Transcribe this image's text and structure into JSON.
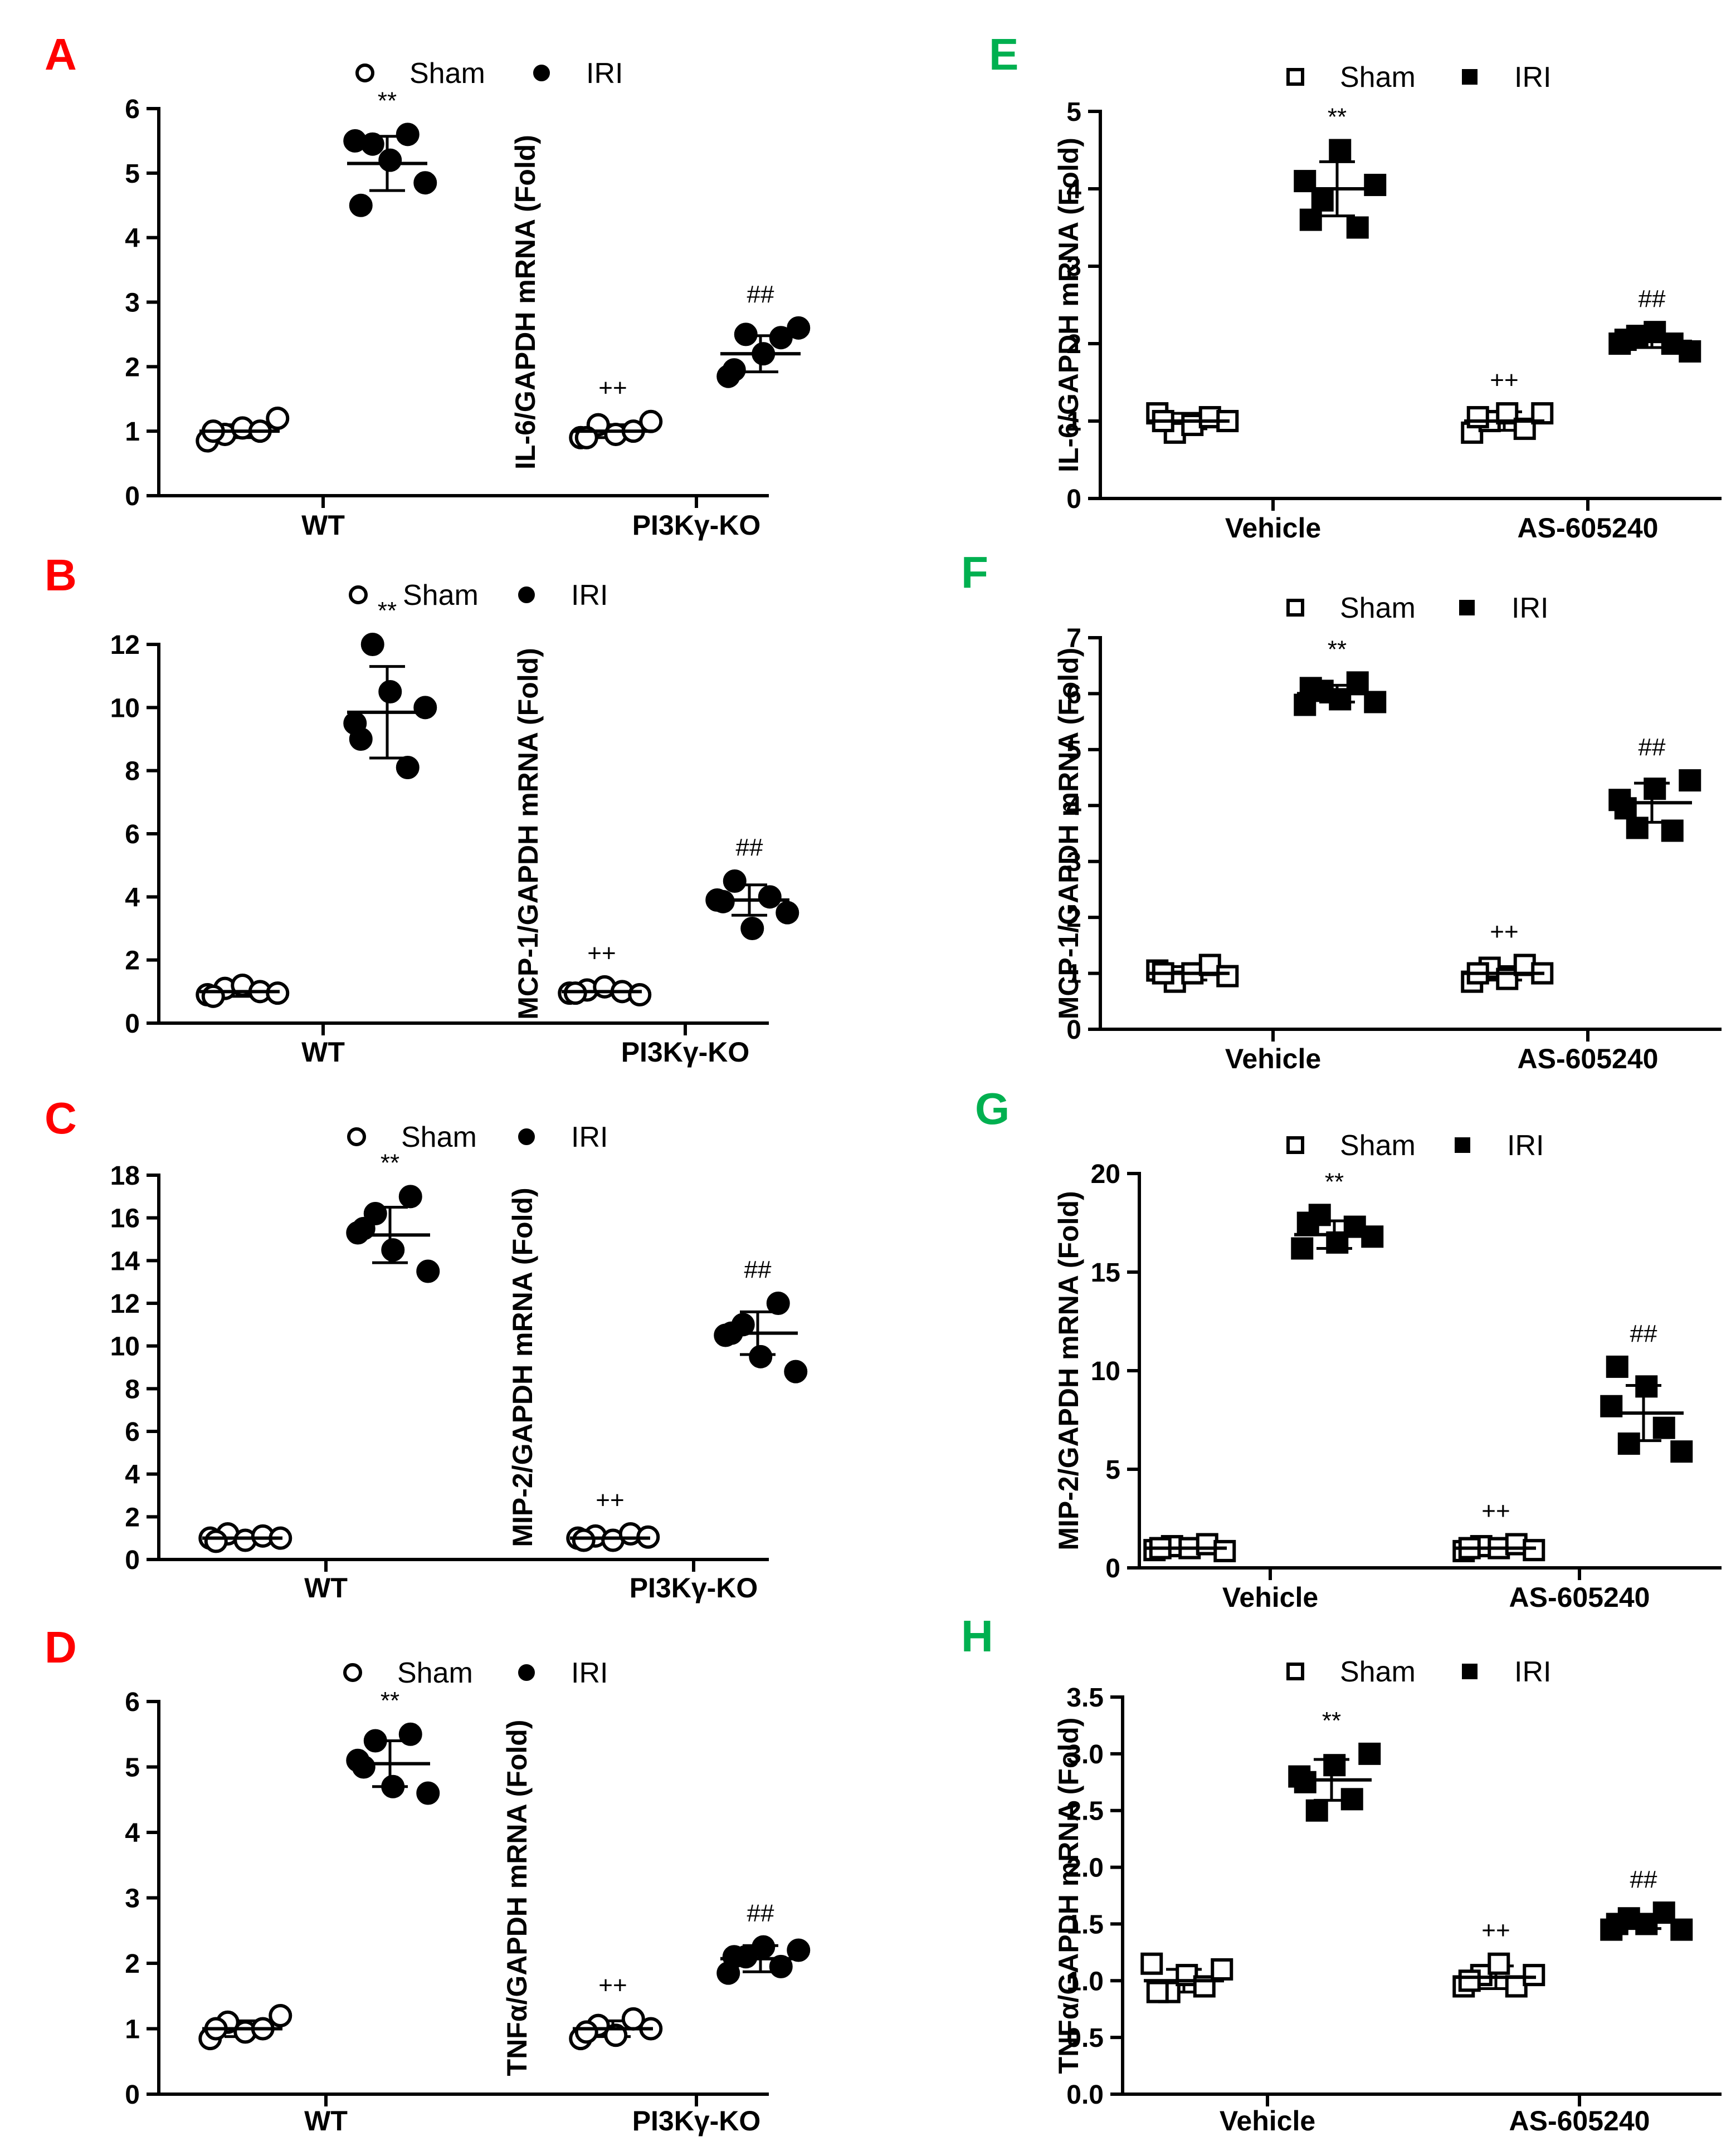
{
  "figure": {
    "panel_label_colors": {
      "left": "#ff0000",
      "right": "#00b050"
    }
  },
  "chart_data": [
    {
      "panel": "A",
      "type": "scatter",
      "marker": "circle",
      "ylabel": "IL-6/GAPDH mRNA (Fold)",
      "ylim": [
        0,
        6
      ],
      "yticks": [
        "0",
        "1",
        "2",
        "3",
        "4",
        "5",
        "6"
      ],
      "categories": [
        "WT",
        "PI3Kγ-KO"
      ],
      "legend": [
        {
          "name": "Sham",
          "fill": "open"
        },
        {
          "name": "IRI",
          "fill": "filled"
        }
      ],
      "groups": [
        {
          "category": 0,
          "series": "Sham",
          "values": [
            0.85,
            0.95,
            1.05,
            1.0,
            1.2,
            1.0
          ],
          "mean": 1.0,
          "sd": 0.1,
          "annotation": ""
        },
        {
          "category": 0,
          "series": "IRI",
          "values": [
            5.5,
            5.45,
            5.2,
            5.6,
            4.85,
            4.5
          ],
          "mean": 5.15,
          "sd": 0.42,
          "annotation": "**"
        },
        {
          "category": 1,
          "series": "Sham",
          "values": [
            0.9,
            1.1,
            0.95,
            1.0,
            1.15,
            0.9
          ],
          "mean": 1.0,
          "sd": 0.1,
          "annotation": "++"
        },
        {
          "category": 1,
          "series": "IRI",
          "values": [
            1.85,
            2.5,
            2.2,
            2.45,
            2.6,
            1.95
          ],
          "mean": 2.2,
          "sd": 0.28,
          "annotation": "##"
        }
      ]
    },
    {
      "panel": "B",
      "type": "scatter",
      "marker": "circle",
      "ylabel": "MCP-1/GAPDH mRNA (Fold)",
      "ylim": [
        0,
        12
      ],
      "yticks": [
        "0",
        "2",
        "4",
        "6",
        "8",
        "10",
        "12"
      ],
      "categories": [
        "WT",
        "PI3Kγ-KO"
      ],
      "legend": [
        {
          "name": "Sham",
          "fill": "open"
        },
        {
          "name": "IRI",
          "fill": "filled"
        }
      ],
      "groups": [
        {
          "category": 0,
          "series": "Sham",
          "values": [
            0.9,
            1.1,
            1.2,
            1.0,
            0.95,
            0.85
          ],
          "mean": 1.0,
          "sd": 0.15,
          "annotation": ""
        },
        {
          "category": 0,
          "series": "IRI",
          "values": [
            9.5,
            12.0,
            10.5,
            8.1,
            10.0,
            9.0
          ],
          "mean": 9.85,
          "sd": 1.45,
          "annotation": "**"
        },
        {
          "category": 1,
          "series": "Sham",
          "values": [
            0.95,
            1.05,
            1.15,
            1.0,
            0.9,
            0.95
          ],
          "mean": 1.0,
          "sd": 0.1,
          "annotation": "++"
        },
        {
          "category": 1,
          "series": "IRI",
          "values": [
            3.9,
            4.5,
            3.0,
            4.0,
            3.5,
            3.85
          ],
          "mean": 3.9,
          "sd": 0.48,
          "annotation": "##"
        }
      ]
    },
    {
      "panel": "C",
      "type": "scatter",
      "marker": "circle",
      "ylabel": "MIP-2/GAPDH mRNA (Fold)",
      "ylim": [
        0,
        18
      ],
      "yticks": [
        "0",
        "2",
        "4",
        "6",
        "8",
        "10",
        "12",
        "14",
        "16",
        "18"
      ],
      "categories": [
        "WT",
        "PI3Kγ-KO"
      ],
      "legend": [
        {
          "name": "Sham",
          "fill": "open"
        },
        {
          "name": "IRI",
          "fill": "filled"
        }
      ],
      "groups": [
        {
          "category": 0,
          "series": "Sham",
          "values": [
            1.0,
            1.2,
            0.9,
            1.1,
            1.0,
            0.85
          ],
          "mean": 1.0,
          "sd": 0.15,
          "annotation": ""
        },
        {
          "category": 0,
          "series": "IRI",
          "values": [
            15.3,
            16.2,
            14.5,
            17.0,
            13.5,
            15.5
          ],
          "mean": 15.2,
          "sd": 1.3,
          "annotation": "**"
        },
        {
          "category": 1,
          "series": "Sham",
          "values": [
            1.0,
            1.1,
            0.9,
            1.2,
            1.05,
            0.9
          ],
          "mean": 1.0,
          "sd": 0.12,
          "annotation": "++"
        },
        {
          "category": 1,
          "series": "IRI",
          "values": [
            10.5,
            11.0,
            9.5,
            12.0,
            8.8,
            10.6
          ],
          "mean": 10.6,
          "sd": 1.0,
          "annotation": "##"
        }
      ]
    },
    {
      "panel": "D",
      "type": "scatter",
      "marker": "circle",
      "ylabel": "TNFα/GAPDH mRNA (Fold)",
      "ylim": [
        0,
        6
      ],
      "yticks": [
        "0",
        "1",
        "2",
        "3",
        "4",
        "5",
        "6"
      ],
      "categories": [
        "WT",
        "PI3Kγ-KO"
      ],
      "legend": [
        {
          "name": "Sham",
          "fill": "open"
        },
        {
          "name": "IRI",
          "fill": "filled"
        }
      ],
      "groups": [
        {
          "category": 0,
          "series": "Sham",
          "values": [
            0.85,
            1.1,
            0.95,
            1.0,
            1.2,
            1.0
          ],
          "mean": 1.0,
          "sd": 0.12,
          "annotation": ""
        },
        {
          "category": 0,
          "series": "IRI",
          "values": [
            5.1,
            5.4,
            4.7,
            5.5,
            4.6,
            5.0
          ],
          "mean": 5.05,
          "sd": 0.35,
          "annotation": "**"
        },
        {
          "category": 1,
          "series": "Sham",
          "values": [
            0.85,
            1.05,
            0.9,
            1.15,
            1.0,
            0.95
          ],
          "mean": 1.0,
          "sd": 0.12,
          "annotation": "++"
        },
        {
          "category": 1,
          "series": "IRI",
          "values": [
            1.85,
            2.1,
            2.25,
            1.95,
            2.2,
            2.1
          ],
          "mean": 2.07,
          "sd": 0.2,
          "annotation": "##"
        }
      ]
    },
    {
      "panel": "E",
      "type": "scatter",
      "marker": "square",
      "ylabel": "IL-6/GAPDH mRNA (Fold)",
      "ylim": [
        0,
        5
      ],
      "yticks": [
        "0",
        "1",
        "2",
        "3",
        "4",
        "5"
      ],
      "categories": [
        "Vehicle",
        "AS-605240"
      ],
      "legend": [
        {
          "name": "Sham",
          "fill": "open"
        },
        {
          "name": "IRI",
          "fill": "filled"
        }
      ],
      "groups": [
        {
          "category": 0,
          "series": "Sham",
          "values": [
            1.1,
            0.85,
            0.95,
            1.05,
            1.0,
            1.0
          ],
          "mean": 1.0,
          "sd": 0.1,
          "annotation": ""
        },
        {
          "category": 0,
          "series": "IRI",
          "values": [
            4.1,
            3.85,
            4.5,
            3.5,
            4.05,
            3.6
          ],
          "mean": 4.0,
          "sd": 0.35,
          "annotation": "**"
        },
        {
          "category": 1,
          "series": "Sham",
          "values": [
            0.85,
            1.0,
            1.1,
            0.9,
            1.1,
            1.05
          ],
          "mean": 1.0,
          "sd": 0.12,
          "annotation": "++"
        },
        {
          "category": 1,
          "series": "IRI",
          "values": [
            2.0,
            2.1,
            2.15,
            2.0,
            1.9,
            2.05
          ],
          "mean": 2.03,
          "sd": 0.08,
          "annotation": "##"
        }
      ]
    },
    {
      "panel": "F",
      "type": "scatter",
      "marker": "square",
      "ylabel": "MCP-1/GAPDH mRNA (Fold)",
      "ylim": [
        0,
        7
      ],
      "yticks": [
        "0",
        "1",
        "2",
        "3",
        "4",
        "5",
        "6",
        "7"
      ],
      "categories": [
        "Vehicle",
        "AS-605240"
      ],
      "legend": [
        {
          "name": "Sham",
          "fill": "open"
        },
        {
          "name": "IRI",
          "fill": "filled"
        }
      ],
      "groups": [
        {
          "category": 0,
          "series": "Sham",
          "values": [
            1.05,
            0.85,
            1.0,
            1.15,
            0.95,
            1.0
          ],
          "mean": 1.0,
          "sd": 0.12,
          "annotation": ""
        },
        {
          "category": 0,
          "series": "IRI",
          "values": [
            5.8,
            6.05,
            5.9,
            6.2,
            5.85,
            6.1
          ],
          "mean": 6.0,
          "sd": 0.15,
          "annotation": "**"
        },
        {
          "category": 1,
          "series": "Sham",
          "values": [
            0.85,
            1.1,
            0.9,
            1.15,
            1.0,
            1.0
          ],
          "mean": 1.0,
          "sd": 0.12,
          "annotation": "++"
        },
        {
          "category": 1,
          "series": "IRI",
          "values": [
            4.1,
            3.6,
            4.3,
            3.55,
            4.45,
            3.95
          ],
          "mean": 4.05,
          "sd": 0.35,
          "annotation": "##"
        }
      ]
    },
    {
      "panel": "G",
      "type": "scatter",
      "marker": "square",
      "ylabel": "MIP-2/GAPDH mRNA (Fold)",
      "ylim": [
        0,
        20
      ],
      "yticks": [
        "0",
        "5",
        "10",
        "15",
        "20"
      ],
      "categories": [
        "Vehicle",
        "AS-605240"
      ],
      "legend": [
        {
          "name": "Sham",
          "fill": "open"
        },
        {
          "name": "IRI",
          "fill": "filled"
        }
      ],
      "groups": [
        {
          "category": 0,
          "series": "Sham",
          "values": [
            0.9,
            1.1,
            1.0,
            1.2,
            0.85,
            1.0
          ],
          "mean": 1.0,
          "sd": 0.12,
          "annotation": ""
        },
        {
          "category": 0,
          "series": "IRI",
          "values": [
            16.2,
            17.9,
            16.5,
            17.3,
            16.8,
            17.5
          ],
          "mean": 16.9,
          "sd": 0.7,
          "annotation": "**"
        },
        {
          "category": 1,
          "series": "Sham",
          "values": [
            0.85,
            1.1,
            1.0,
            1.2,
            0.9,
            1.0
          ],
          "mean": 1.0,
          "sd": 0.12,
          "annotation": "++"
        },
        {
          "category": 1,
          "series": "IRI",
          "values": [
            8.2,
            6.3,
            9.2,
            7.1,
            5.9,
            10.2
          ],
          "mean": 7.85,
          "sd": 1.4,
          "annotation": "##"
        }
      ]
    },
    {
      "panel": "H",
      "type": "scatter",
      "marker": "square",
      "ylabel": "TNFα/GAPDH mRNA (Fold)",
      "ylim": [
        0,
        3.5
      ],
      "yticks": [
        "0.0",
        "0.5",
        "1.0",
        "1.5",
        "2.0",
        "2.5",
        "3.0",
        "3.5"
      ],
      "categories": [
        "Vehicle",
        "AS-605240"
      ],
      "legend": [
        {
          "name": "Sham",
          "fill": "open"
        },
        {
          "name": "IRI",
          "fill": "filled"
        }
      ],
      "groups": [
        {
          "category": 0,
          "series": "Sham",
          "values": [
            1.15,
            0.9,
            1.05,
            0.95,
            1.1,
            0.9
          ],
          "mean": 1.0,
          "sd": 0.1,
          "annotation": ""
        },
        {
          "category": 0,
          "series": "IRI",
          "values": [
            2.8,
            2.5,
            2.9,
            2.6,
            3.0,
            2.75
          ],
          "mean": 2.77,
          "sd": 0.18,
          "annotation": "**"
        },
        {
          "category": 1,
          "series": "Sham",
          "values": [
            0.95,
            1.05,
            1.15,
            0.95,
            1.05,
            1.0
          ],
          "mean": 1.03,
          "sd": 0.1,
          "annotation": "++"
        },
        {
          "category": 1,
          "series": "IRI",
          "values": [
            1.45,
            1.55,
            1.5,
            1.6,
            1.45,
            1.5
          ],
          "mean": 1.52,
          "sd": 0.06,
          "annotation": "##"
        }
      ]
    }
  ]
}
